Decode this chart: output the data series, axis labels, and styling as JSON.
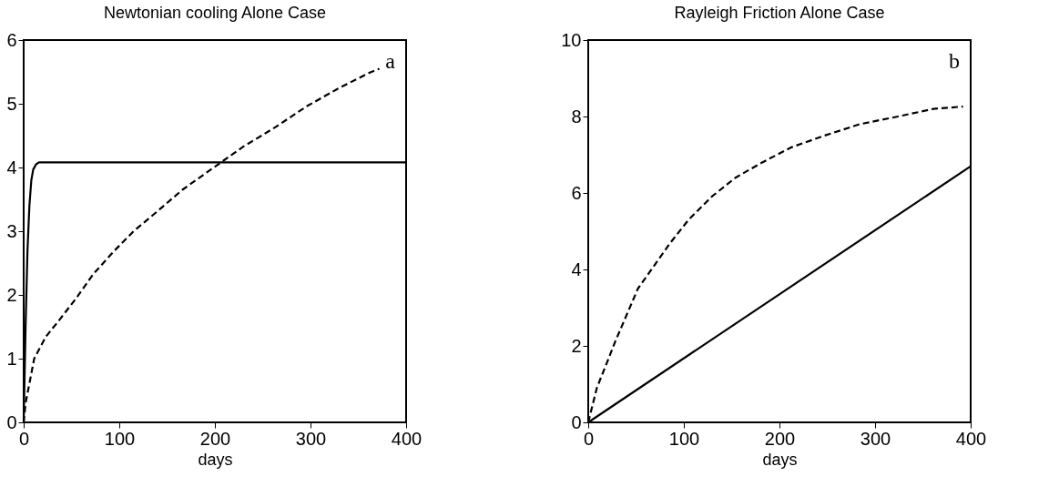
{
  "chart_data": [
    {
      "type": "line",
      "title": "Newtonian cooling Alone Case",
      "xlabel": "days",
      "annotations": [
        "a"
      ],
      "xlim": [
        0,
        400
      ],
      "xticks": [
        0,
        100,
        200,
        300,
        400
      ],
      "ylim": [
        0,
        6
      ],
      "yticks": [
        0,
        1,
        2,
        3,
        4,
        5,
        6
      ],
      "grid": false,
      "marker": "none",
      "series": [
        {
          "color": "#000000",
          "line_style": "solid",
          "x": [
            0,
            2,
            4,
            6,
            8,
            10,
            13,
            16,
            400
          ],
          "values": [
            0,
            1.5,
            2.7,
            3.4,
            3.8,
            3.97,
            4.05,
            4.08,
            4.08
          ]
        },
        {
          "color": "#000000",
          "line_style": "dashed",
          "x": [
            0,
            2,
            11,
            23,
            38,
            55,
            73,
            94,
            115,
            142,
            166,
            196,
            230,
            263,
            296,
            329,
            362,
            372
          ],
          "values": [
            0,
            0.3,
            1.0,
            1.34,
            1.62,
            1.95,
            2.33,
            2.68,
            3.0,
            3.34,
            3.65,
            3.97,
            4.33,
            4.63,
            4.96,
            5.24,
            5.49,
            5.55
          ]
        }
      ]
    },
    {
      "type": "line",
      "title": "Rayleigh Friction Alone Case",
      "xlabel": "days",
      "annotations": [
        "b"
      ],
      "xlim": [
        0,
        400
      ],
      "xticks": [
        0,
        100,
        200,
        300,
        400
      ],
      "ylim": [
        0,
        10
      ],
      "yticks": [
        0,
        2,
        4,
        6,
        8,
        10
      ],
      "grid": false,
      "marker": "none",
      "series": [
        {
          "color": "#000000",
          "line_style": "solid",
          "x": [
            0,
            400
          ],
          "values": [
            0,
            6.7
          ]
        },
        {
          "color": "#000000",
          "line_style": "dashed",
          "x": [
            0,
            9,
            17,
            28,
            40,
            52,
            69,
            86,
            105,
            129,
            154,
            182,
            213,
            247,
            284,
            324,
            361,
            392
          ],
          "values": [
            0,
            0.9,
            1.4,
            2.1,
            2.8,
            3.5,
            4.1,
            4.7,
            5.3,
            5.9,
            6.4,
            6.8,
            7.2,
            7.5,
            7.8,
            8.0,
            8.2,
            8.26
          ]
        }
      ]
    }
  ]
}
